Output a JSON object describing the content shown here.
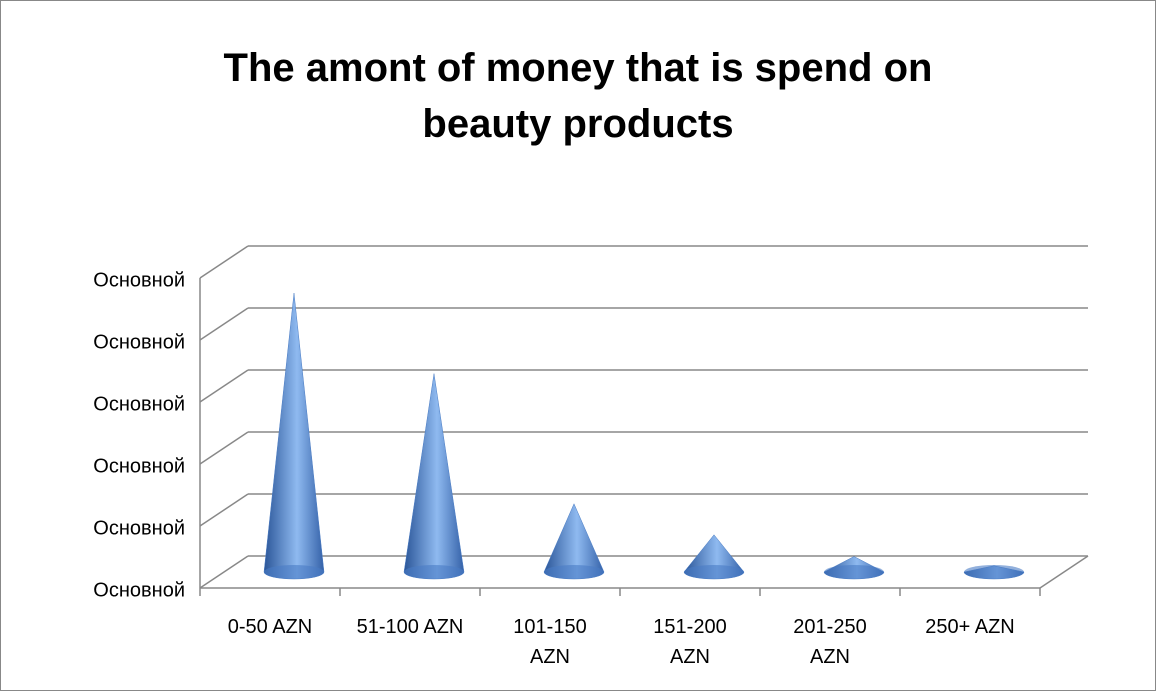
{
  "chart_data": {
    "type": "cone",
    "title": "The amont of money that is spend on beauty products",
    "categories": [
      "0-50 AZN",
      "51-100 AZN",
      "101-150 AZN",
      "151-200 AZN",
      "201-250 AZN",
      "250+ AZN"
    ],
    "values": [
      4.5,
      3.2,
      1.1,
      0.6,
      0.25,
      0.1
    ],
    "color": "#4a7cc4",
    "ylim": [
      0,
      5
    ],
    "yticks": [
      {
        "value": 0,
        "label": "Основной"
      },
      {
        "value": 1,
        "label": "Основной"
      },
      {
        "value": 2,
        "label": "Основной"
      },
      {
        "value": 3,
        "label": "Основной"
      },
      {
        "value": 4,
        "label": "Основной"
      },
      {
        "value": 5,
        "label": "Основной"
      }
    ],
    "grid": true
  }
}
